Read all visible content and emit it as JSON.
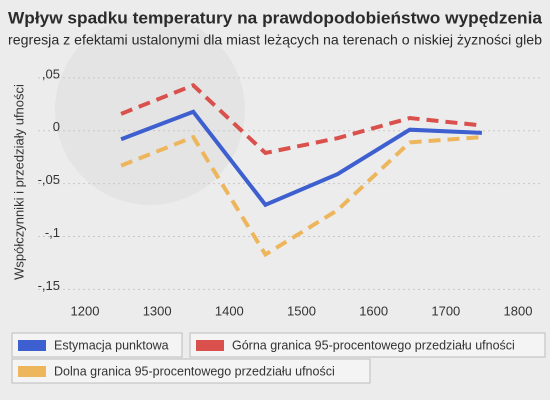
{
  "chart_data": {
    "type": "line",
    "title": "Wpływ spadku temperatury na prawdopodobieństwo wypędzenia",
    "subtitle": "regresja z efektami ustalonymi dla miast leżących na terenach o niskiej żyzności gleb",
    "y_label": "Współczynniki i przedziały ufności",
    "x": [
      1250,
      1350,
      1450,
      1550,
      1650,
      1750
    ],
    "series": [
      {
        "name": "Estymacja punktowa",
        "color": "#3d5fcf",
        "dashed": false,
        "values": [
          -0.008,
          0.018,
          -0.07,
          -0.041,
          0.001,
          -0.002
        ]
      },
      {
        "name": "Górna granica 95-procentowego przedziału ufności",
        "color": "#d9504c",
        "dashed": true,
        "values": [
          0.016,
          0.043,
          -0.021,
          -0.007,
          0.012,
          0.005
        ]
      },
      {
        "name": "Dolna granica 95-procentowego przedziału ufności",
        "color": "#eeb65c",
        "dashed": true,
        "values": [
          -0.033,
          -0.006,
          -0.117,
          -0.075,
          -0.011,
          -0.006
        ]
      }
    ],
    "xlim": [
      1200,
      1800
    ],
    "xticks": [
      1200,
      1300,
      1400,
      1500,
      1600,
      1700,
      1800
    ],
    "ylim": [
      -0.16,
      0.065
    ],
    "yticks": [
      {
        "value": 0.05,
        "label": ",05"
      },
      0,
      {
        "value": -0.05,
        "label": "-,05"
      },
      {
        "value": -0.1,
        "label": "-,1"
      },
      {
        "value": -0.15,
        "label": "-,15"
      }
    ],
    "grid": true
  }
}
